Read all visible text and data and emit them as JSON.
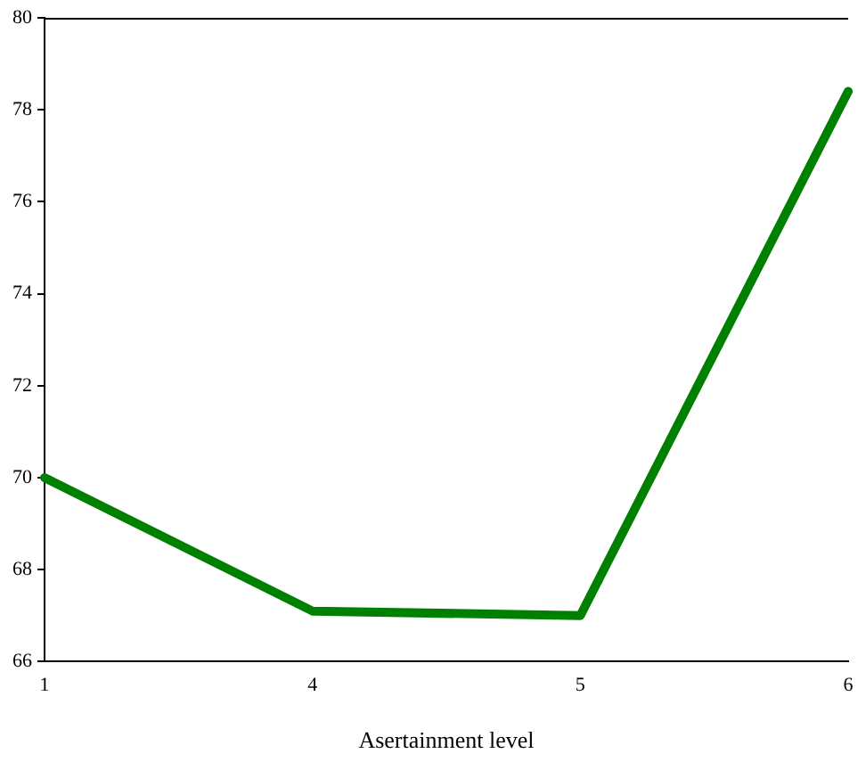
{
  "chart_data": {
    "type": "line",
    "xlabel": "Asertainment level",
    "categories": [
      "1",
      "4",
      "5",
      "6"
    ],
    "series": [
      {
        "color": "#008000",
        "values": [
          70,
          67.1,
          67,
          78.4
        ]
      }
    ],
    "ylim": [
      66,
      80
    ],
    "yticks": [
      66,
      68,
      70,
      72,
      74,
      76,
      78,
      80
    ],
    "grid": false,
    "legend": false,
    "marker": "none",
    "line_style": "solid"
  }
}
